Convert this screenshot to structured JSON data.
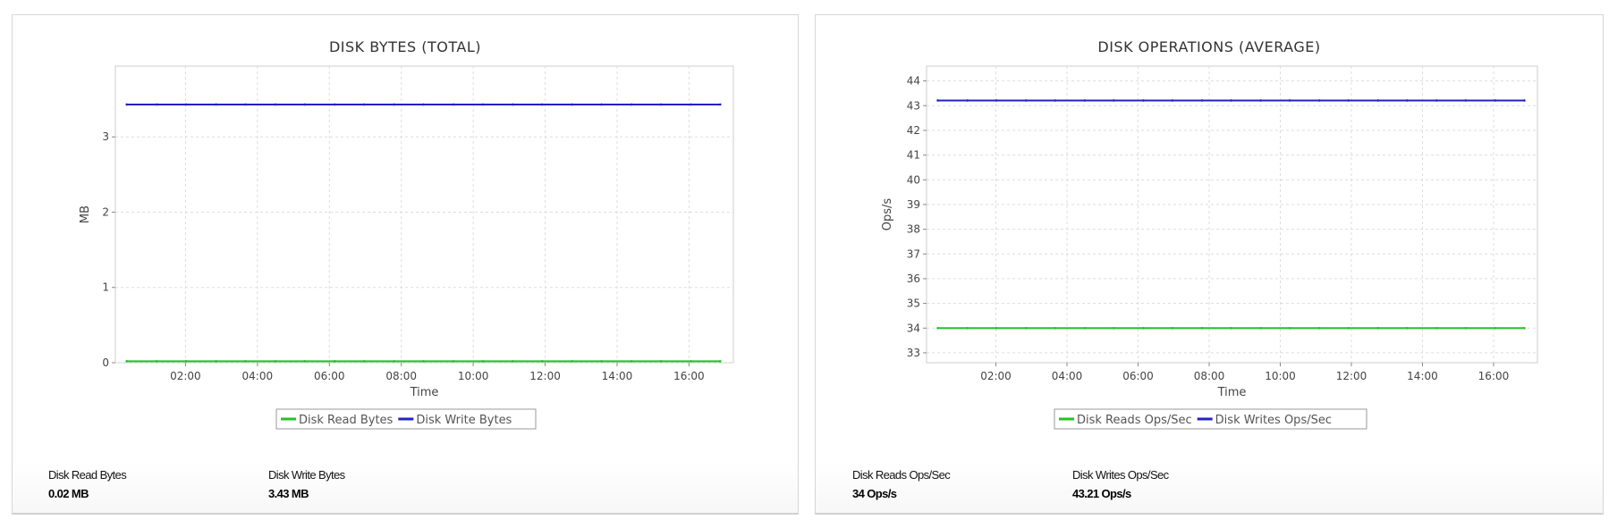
{
  "chart_data": [
    {
      "type": "line",
      "title": "DISK BYTES (TOTAL)",
      "xlabel": "Time",
      "ylabel": "MB",
      "ylim": [
        0,
        3.94
      ],
      "yticks": [
        0,
        1,
        2,
        3
      ],
      "xticks": [
        "02:00",
        "04:00",
        "06:00",
        "08:00",
        "10:00",
        "12:00",
        "14:00",
        "16:00"
      ],
      "xlim": [
        "00:03",
        "17:14"
      ],
      "grid": true,
      "legend_position": "bottom",
      "x": [
        "00:22",
        "01:12",
        "02:01",
        "02:51",
        "03:40",
        "04:30",
        "05:19",
        "06:09",
        "06:58",
        "07:48",
        "08:37",
        "09:27",
        "10:16",
        "11:06",
        "11:55",
        "12:45",
        "13:34",
        "14:24",
        "15:13",
        "16:03",
        "16:52"
      ],
      "series": [
        {
          "name": "Disk Read Bytes",
          "color": "#22c322",
          "values": [
            0.02,
            0.02,
            0.02,
            0.02,
            0.02,
            0.02,
            0.02,
            0.02,
            0.02,
            0.02,
            0.02,
            0.02,
            0.02,
            0.02,
            0.02,
            0.02,
            0.02,
            0.02,
            0.02,
            0.02,
            0.02
          ]
        },
        {
          "name": "Disk Write Bytes",
          "color": "#2222c0",
          "values": [
            3.43,
            3.43,
            3.43,
            3.43,
            3.43,
            3.43,
            3.43,
            3.43,
            3.43,
            3.43,
            3.43,
            3.43,
            3.43,
            3.43,
            3.43,
            3.43,
            3.43,
            3.43,
            3.43,
            3.43,
            3.43
          ]
        }
      ]
    },
    {
      "type": "line",
      "title": "DISK OPERATIONS (AVERAGE)",
      "xlabel": "Time",
      "ylabel": "Ops/s",
      "ylim": [
        32.6,
        44.6
      ],
      "yticks": [
        33,
        34,
        35,
        36,
        37,
        38,
        39,
        40,
        41,
        42,
        43,
        44
      ],
      "xticks": [
        "02:00",
        "04:00",
        "06:00",
        "08:00",
        "10:00",
        "12:00",
        "14:00",
        "16:00"
      ],
      "xlim": [
        "00:03",
        "17:14"
      ],
      "grid": true,
      "legend_position": "bottom",
      "x": [
        "00:22",
        "01:12",
        "02:01",
        "02:51",
        "03:40",
        "04:30",
        "05:19",
        "06:09",
        "06:58",
        "07:48",
        "08:37",
        "09:27",
        "10:16",
        "11:06",
        "11:55",
        "12:45",
        "13:34",
        "14:24",
        "15:13",
        "16:03",
        "16:52"
      ],
      "series": [
        {
          "name": "Disk Reads Ops/Sec",
          "color": "#22c322",
          "values": [
            34,
            34,
            34,
            34,
            34,
            34,
            34,
            34,
            34,
            34,
            34,
            34,
            34,
            34,
            34,
            34,
            34,
            34,
            34,
            34,
            34
          ]
        },
        {
          "name": "Disk Writes Ops/Sec",
          "color": "#2222c0",
          "values": [
            43.21,
            43.21,
            43.21,
            43.21,
            43.21,
            43.21,
            43.21,
            43.21,
            43.21,
            43.21,
            43.21,
            43.21,
            43.21,
            43.21,
            43.21,
            43.21,
            43.21,
            43.21,
            43.21,
            43.21,
            43.21
          ]
        }
      ]
    }
  ],
  "panels": [
    {
      "stats": [
        {
          "label": "Disk Read Bytes",
          "value": "0.02 MB"
        },
        {
          "label": "Disk Write Bytes",
          "value": "3.43 MB"
        }
      ]
    },
    {
      "stats": [
        {
          "label": "Disk Reads Ops/Sec",
          "value": "34 Ops/s"
        },
        {
          "label": "Disk Writes Ops/Sec",
          "value": "43.21 Ops/s"
        }
      ]
    }
  ]
}
